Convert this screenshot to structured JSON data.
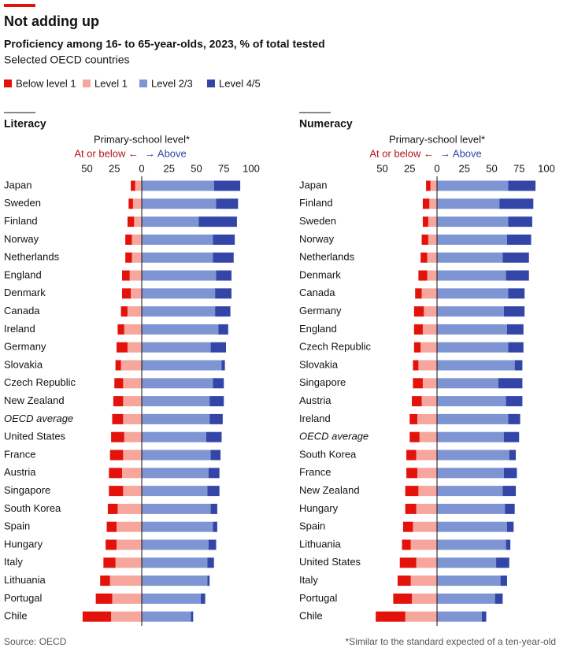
{
  "title": "Not adding up",
  "subtitle": "Proficiency among 16- to 65-year-olds, 2023, % of total tested",
  "subtitle2": "Selected OECD countries",
  "source": "Source: OECD",
  "footnote": "*Similar to the standard expected of a ten-year-old",
  "chart_data": [
    {
      "type": "bar",
      "orientation": "horizontal",
      "title": "Literacy",
      "annotation": "Primary-school level*",
      "left_label": "At or below ←",
      "right_label": "→ Above",
      "categories": [
        "Japan",
        "Sweden",
        "Finland",
        "Norway",
        "Netherlands",
        "England",
        "Denmark",
        "Canada",
        "Ireland",
        "Germany",
        "Slovakia",
        "Czech Republic",
        "New Zealand",
        "OECD average",
        "United States",
        "France",
        "Austria",
        "Singapore",
        "South Korea",
        "Spain",
        "Hungary",
        "Italy",
        "Lithuania",
        "Portugal",
        "Chile"
      ],
      "italic": [
        13
      ],
      "series": [
        {
          "name": "Below level 1",
          "color": "#e3120b",
          "stack": "left",
          "values": [
            4,
            4,
            6,
            6,
            6,
            7,
            8,
            6,
            6,
            10,
            5,
            8,
            9,
            10,
            12,
            12,
            12,
            13,
            9,
            9,
            10,
            11,
            9,
            15,
            26
          ]
        },
        {
          "name": "Level 1",
          "color": "#f6a69c",
          "stack": "left",
          "values": [
            6,
            8,
            7,
            9,
            9,
            11,
            10,
            13,
            16,
            13,
            19,
            17,
            17,
            17,
            16,
            17,
            18,
            17,
            22,
            23,
            23,
            24,
            29,
            27,
            28
          ]
        },
        {
          "name": "Level 2/3",
          "color": "#7f94d2",
          "stack": "right",
          "values": [
            66,
            68,
            52,
            65,
            65,
            68,
            67,
            67,
            70,
            63,
            73,
            65,
            62,
            62,
            59,
            63,
            61,
            60,
            63,
            65,
            61,
            60,
            60,
            54,
            45
          ]
        },
        {
          "name": "Level 4/5",
          "color": "#3346a8",
          "stack": "right",
          "values": [
            24,
            20,
            35,
            20,
            19,
            14,
            15,
            14,
            9,
            14,
            3,
            10,
            13,
            12,
            14,
            9,
            10,
            11,
            6,
            4,
            7,
            6,
            2,
            4,
            2
          ]
        }
      ],
      "xlim": [
        -50,
        100
      ],
      "xticks": [
        {
          "value": -50,
          "label": "50"
        },
        {
          "value": -25,
          "label": "25"
        },
        0,
        25,
        50,
        75,
        100
      ],
      "grid": false
    },
    {
      "type": "bar",
      "orientation": "horizontal",
      "title": "Numeracy",
      "annotation": "Primary-school level*",
      "left_label": "At or below ←",
      "right_label": "→ Above",
      "categories": [
        "Japan",
        "Finland",
        "Sweden",
        "Norway",
        "Netherlands",
        "Denmark",
        "Canada",
        "Germany",
        "England",
        "Czech Republic",
        "Slovakia",
        "Singapore",
        "Austria",
        "Ireland",
        "OECD average",
        "South Korea",
        "France",
        "New Zealand",
        "Hungary",
        "Spain",
        "Lithuania",
        "United States",
        "Italy",
        "Portugal",
        "Chile"
      ],
      "italic": [
        14
      ],
      "series": [
        {
          "name": "Below level 1",
          "color": "#e3120b",
          "stack": "left",
          "values": [
            4,
            6,
            5,
            6,
            6,
            8,
            6,
            9,
            8,
            6,
            5,
            9,
            9,
            7,
            9,
            9,
            10,
            12,
            10,
            9,
            8,
            15,
            12,
            17,
            27
          ]
        },
        {
          "name": "Level 1",
          "color": "#f6a69c",
          "stack": "left",
          "values": [
            6,
            7,
            8,
            8,
            9,
            9,
            14,
            12,
            13,
            15,
            17,
            13,
            14,
            18,
            16,
            19,
            18,
            17,
            19,
            22,
            24,
            19,
            24,
            23,
            29
          ]
        },
        {
          "name": "Level 2/3",
          "color": "#7f94d2",
          "stack": "right",
          "values": [
            65,
            57,
            65,
            64,
            60,
            63,
            65,
            61,
            64,
            65,
            71,
            56,
            63,
            65,
            61,
            66,
            61,
            60,
            62,
            64,
            63,
            54,
            58,
            53,
            41
          ]
        },
        {
          "name": "Level 4/5",
          "color": "#3346a8",
          "stack": "right",
          "values": [
            25,
            31,
            22,
            22,
            24,
            21,
            15,
            19,
            15,
            14,
            7,
            22,
            15,
            11,
            14,
            6,
            12,
            12,
            9,
            6,
            4,
            12,
            6,
            7,
            4
          ]
        }
      ],
      "xlim": [
        -50,
        100
      ],
      "xticks": [
        {
          "value": -50,
          "label": "50"
        },
        {
          "value": -25,
          "label": "25"
        },
        0,
        25,
        50,
        75,
        100
      ],
      "grid": false
    }
  ]
}
